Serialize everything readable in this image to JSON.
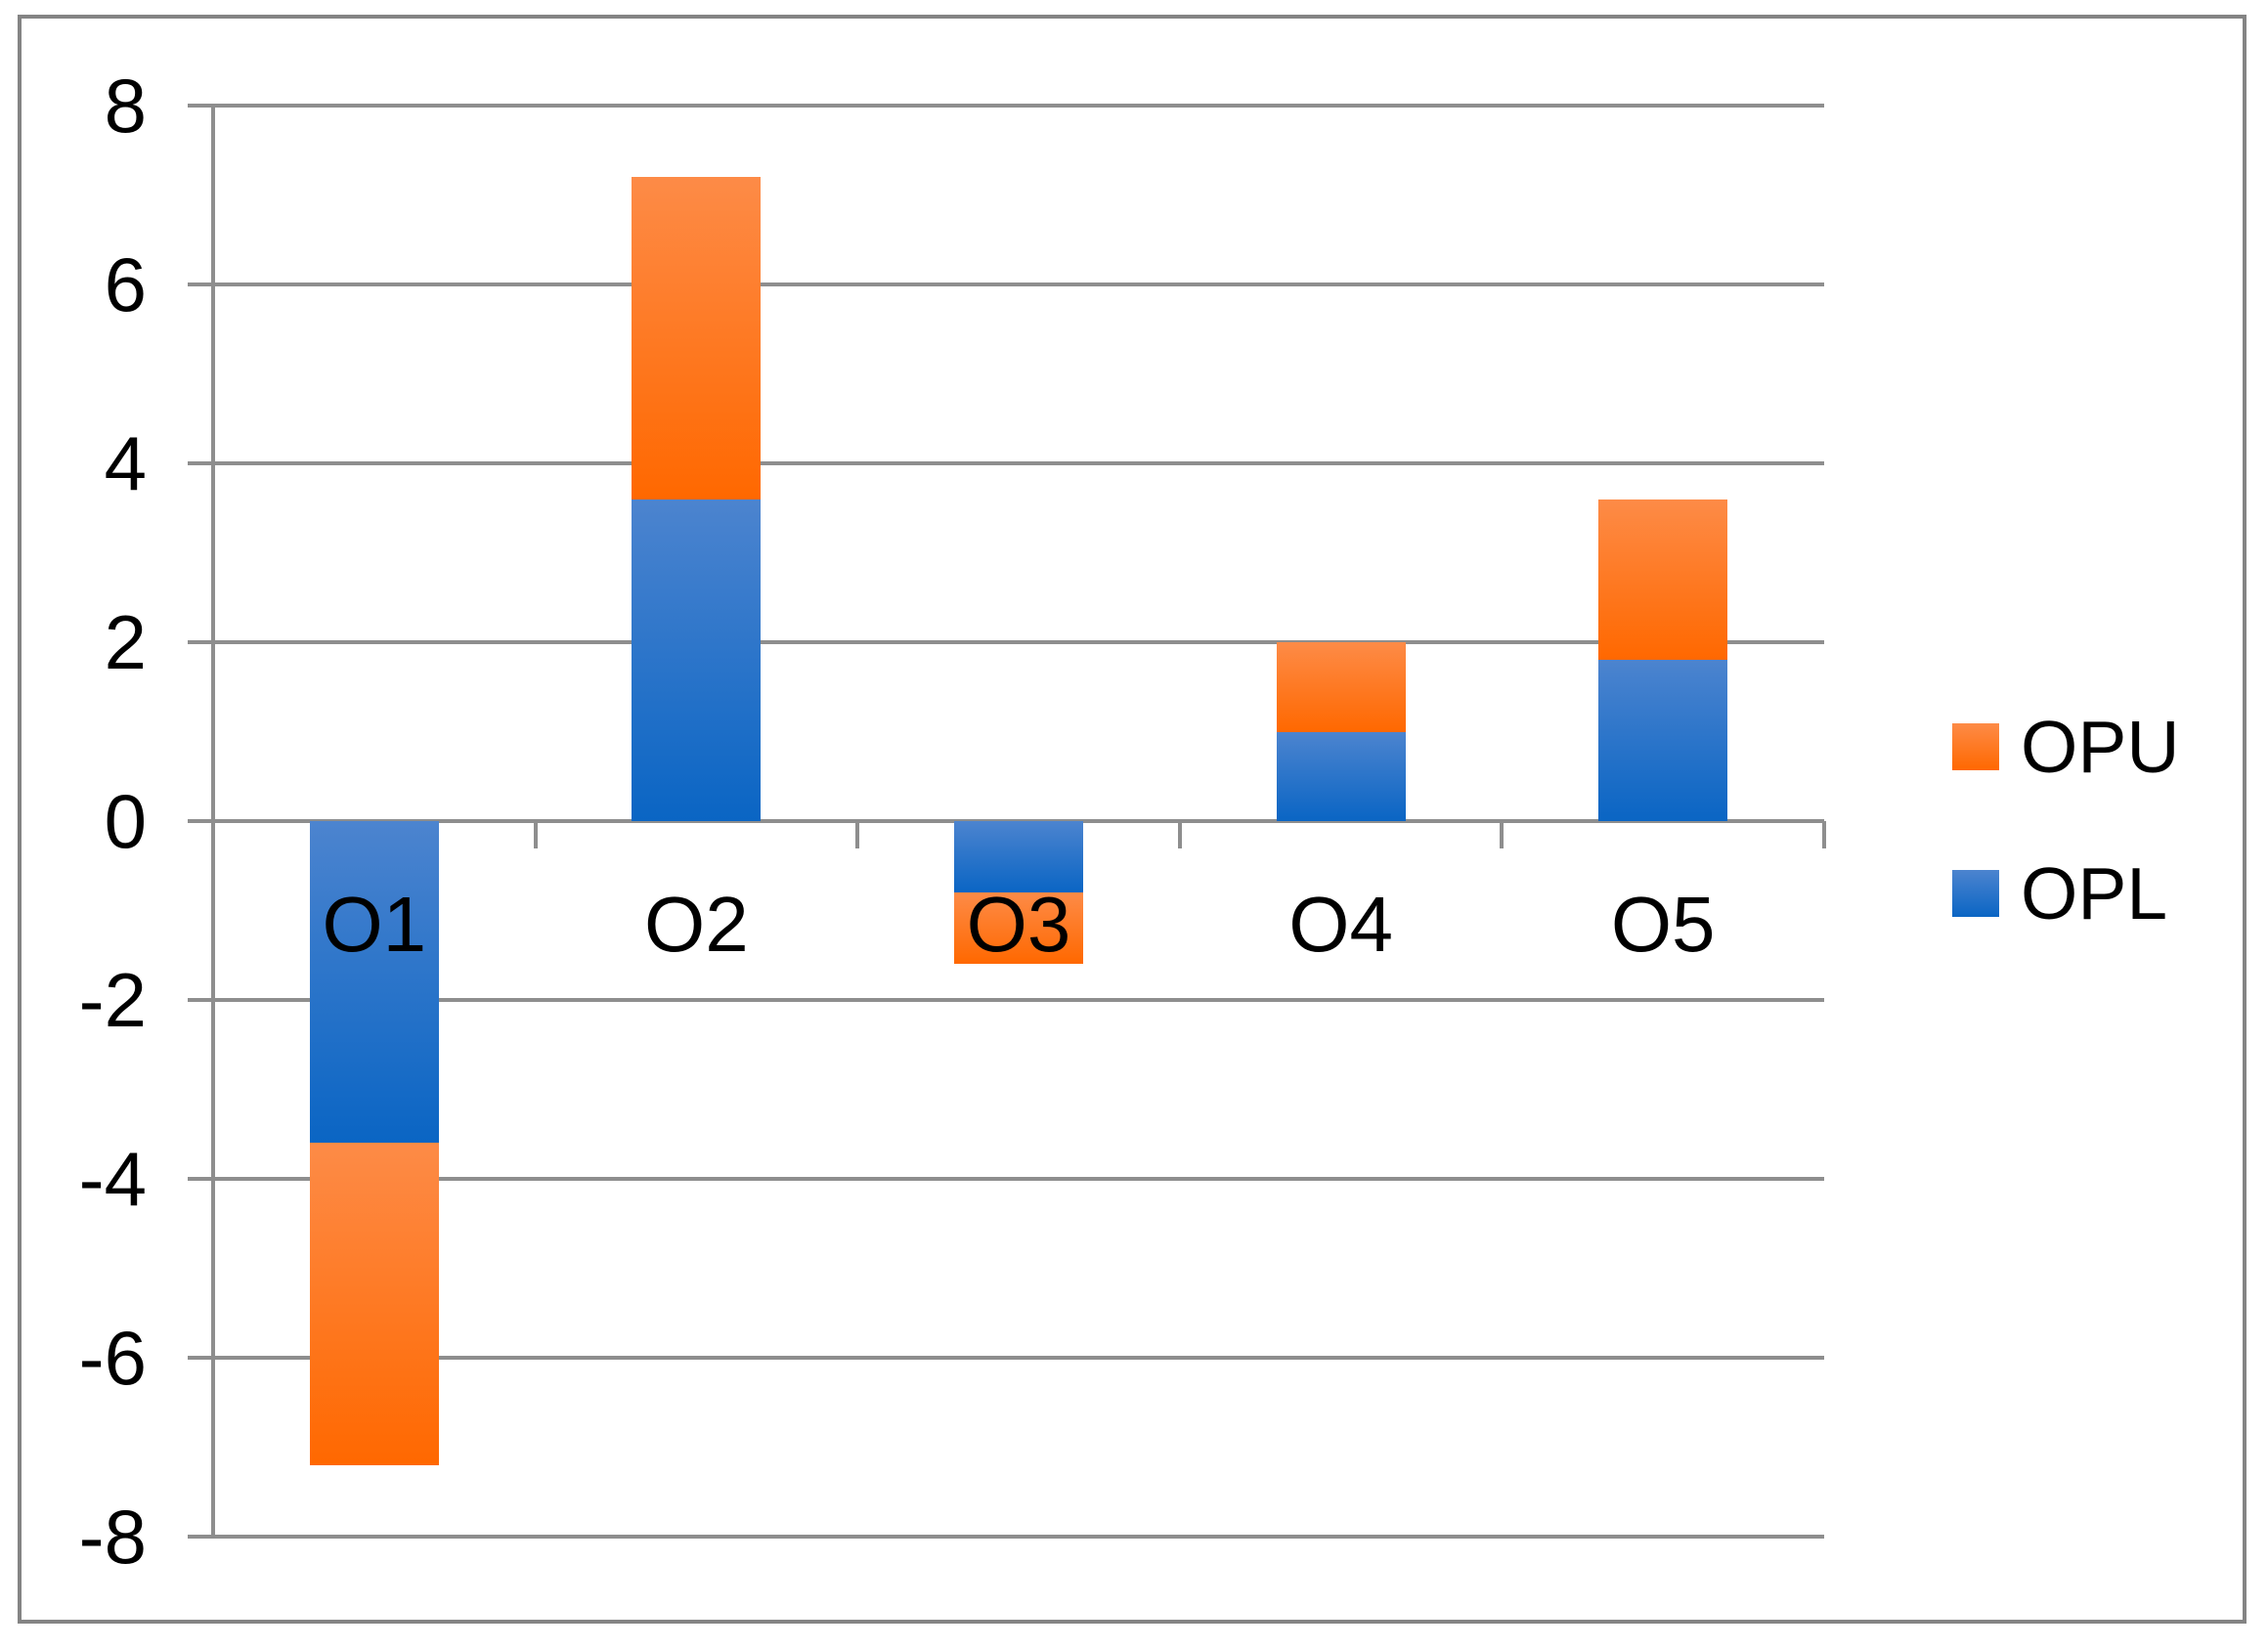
{
  "chart_data": {
    "type": "bar",
    "stacked": true,
    "title": "",
    "xlabel": "",
    "ylabel": "",
    "categories": [
      "O1",
      "O2",
      "O3",
      "O4",
      "O5"
    ],
    "series": [
      {
        "name": "OPL",
        "values": [
          -3.6,
          3.6,
          -0.8,
          1.0,
          1.8
        ],
        "color_top": "#4c84cf",
        "color_bottom": "#0a65c4"
      },
      {
        "name": "OPU",
        "values": [
          -3.6,
          3.6,
          -0.8,
          1.0,
          1.8
        ],
        "color_top": "#fd8b47",
        "color_bottom": "#ff6800"
      }
    ],
    "stack_totals": [
      -7.2,
      7.2,
      -1.6,
      2.0,
      3.6
    ],
    "ylim": [
      -8,
      8
    ],
    "yticks": [
      8,
      6,
      4,
      2,
      0,
      -2,
      -4,
      -6,
      -8
    ],
    "grid": true,
    "legend_position": "right"
  },
  "legend": {
    "items": [
      {
        "label": "OPU",
        "swatch": "orange-gradient"
      },
      {
        "label": "OPL",
        "swatch": "blue-gradient"
      }
    ]
  },
  "colors": {
    "opu_top": "#fd8b47",
    "opu_bottom": "#ff6800",
    "opl_top": "#4c84cf",
    "opl_bottom": "#0a65c4",
    "gridline": "#8e8e8e",
    "frame_border": "#848484",
    "text": "#000000",
    "background": "#ffffff"
  }
}
